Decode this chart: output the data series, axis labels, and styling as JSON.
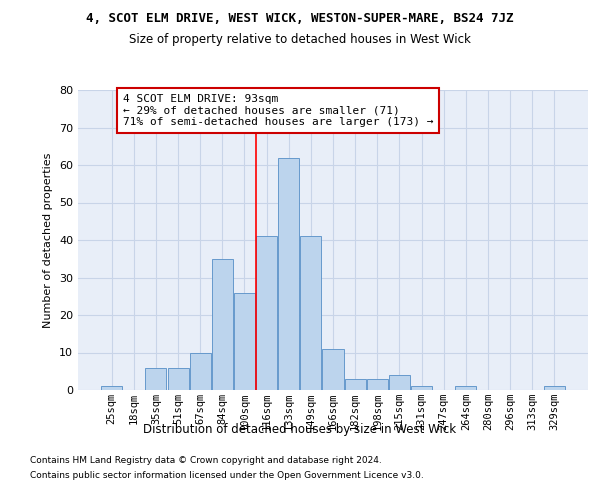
{
  "title": "4, SCOT ELM DRIVE, WEST WICK, WESTON-SUPER-MARE, BS24 7JZ",
  "subtitle": "Size of property relative to detached houses in West Wick",
  "xlabel": "Distribution of detached houses by size in West Wick",
  "ylabel": "Number of detached properties",
  "categories": [
    "25sqm",
    "18sqm",
    "35sqm",
    "51sqm",
    "67sqm",
    "84sqm",
    "100sqm",
    "116sqm",
    "133sqm",
    "149sqm",
    "166sqm",
    "182sqm",
    "198sqm",
    "215sqm",
    "231sqm",
    "247sqm",
    "264sqm",
    "280sqm",
    "296sqm",
    "313sqm",
    "329sqm"
  ],
  "values": [
    1,
    0,
    6,
    6,
    10,
    35,
    26,
    41,
    62,
    41,
    11,
    3,
    3,
    4,
    1,
    0,
    1,
    0,
    0,
    0,
    1
  ],
  "bar_color": "#bcd4ed",
  "bar_edge_color": "#6699cc",
  "background_color": "#e8eef8",
  "grid_color": "#c8d4e8",
  "red_line_x": 6.5,
  "annotation_line1": "4 SCOT ELM DRIVE: 93sqm",
  "annotation_line2": "← 29% of detached houses are smaller (71)",
  "annotation_line3": "71% of semi-detached houses are larger (173) →",
  "annotation_box_color": "#ffffff",
  "annotation_box_edge": "#cc0000",
  "ylim": [
    0,
    80
  ],
  "yticks": [
    0,
    10,
    20,
    30,
    40,
    50,
    60,
    70,
    80
  ],
  "footer1": "Contains HM Land Registry data © Crown copyright and database right 2024.",
  "footer2": "Contains public sector information licensed under the Open Government Licence v3.0."
}
